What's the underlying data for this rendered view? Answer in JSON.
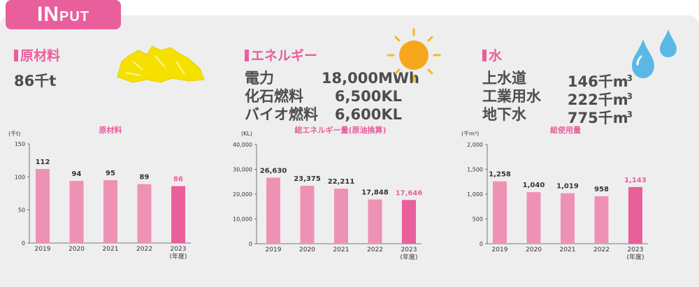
{
  "header": {
    "tab_big": "IN",
    "tab_small": "PUT"
  },
  "colors": {
    "accent": "#e85f9b",
    "bar": "#ee92b5",
    "bar_highlight": "#e85f9b",
    "text": "#4d4d4d",
    "panel": "#efeeee"
  },
  "sections": {
    "materials": {
      "title": "原材料",
      "value": "86千t"
    },
    "energy": {
      "title": "エネルギー",
      "rows": [
        {
          "label": "電力",
          "value": "18,000MWh"
        },
        {
          "label": "化石燃料",
          "value": "6,500KL"
        },
        {
          "label": "バイオ燃料",
          "value": "6,600KL"
        }
      ]
    },
    "water": {
      "title": "水",
      "rows": [
        {
          "label": "上水道",
          "value": "146千m",
          "unit_sup": "3"
        },
        {
          "label": "工業用水",
          "value": "222千m",
          "unit_sup": "3"
        },
        {
          "label": "地下水",
          "value": "775千m",
          "unit_sup": "3"
        }
      ]
    }
  },
  "chart_data": [
    {
      "type": "bar",
      "title": "原材料",
      "ylabel": "(千t)",
      "categories": [
        "2019",
        "2020",
        "2021",
        "2022",
        "2023"
      ],
      "category_suffix": "(年度)",
      "values": [
        112,
        94,
        95,
        89,
        86
      ],
      "value_labels": [
        "112",
        "94",
        "95",
        "89",
        "86"
      ],
      "ylim": [
        0,
        150
      ],
      "yticks": [
        0,
        50,
        100,
        150
      ],
      "ytick_labels": [
        "0",
        "50",
        "100",
        "150"
      ],
      "highlight_index": 4,
      "grid": false
    },
    {
      "type": "bar",
      "title": "総エネルギー量(原油換算)",
      "ylabel": "(KL)",
      "categories": [
        "2019",
        "2020",
        "2021",
        "2022",
        "2023"
      ],
      "category_suffix": "(年度)",
      "values": [
        26630,
        23375,
        22211,
        17848,
        17646
      ],
      "value_labels": [
        "26,630",
        "23,375",
        "22,211",
        "17,848",
        "17,646"
      ],
      "ylim": [
        0,
        40000
      ],
      "yticks": [
        0,
        10000,
        20000,
        30000,
        40000
      ],
      "ytick_labels": [
        "0",
        "10,000",
        "20,000",
        "30,000",
        "40,000"
      ],
      "highlight_index": 4,
      "grid": false
    },
    {
      "type": "bar",
      "title": "総使用量",
      "ylabel": "(千m³)",
      "categories": [
        "2019",
        "2020",
        "2021",
        "2022",
        "2023"
      ],
      "category_suffix": "(年度)",
      "values": [
        1258,
        1040,
        1019,
        958,
        1143
      ],
      "value_labels": [
        "1,258",
        "1,040",
        "1,019",
        "958",
        "1,143"
      ],
      "ylim": [
        0,
        2000
      ],
      "yticks": [
        0,
        500,
        1000,
        1500,
        2000
      ],
      "ytick_labels": [
        "0",
        "500",
        "1,000",
        "1,500",
        "2,000"
      ],
      "highlight_index": 4,
      "grid": false
    }
  ]
}
